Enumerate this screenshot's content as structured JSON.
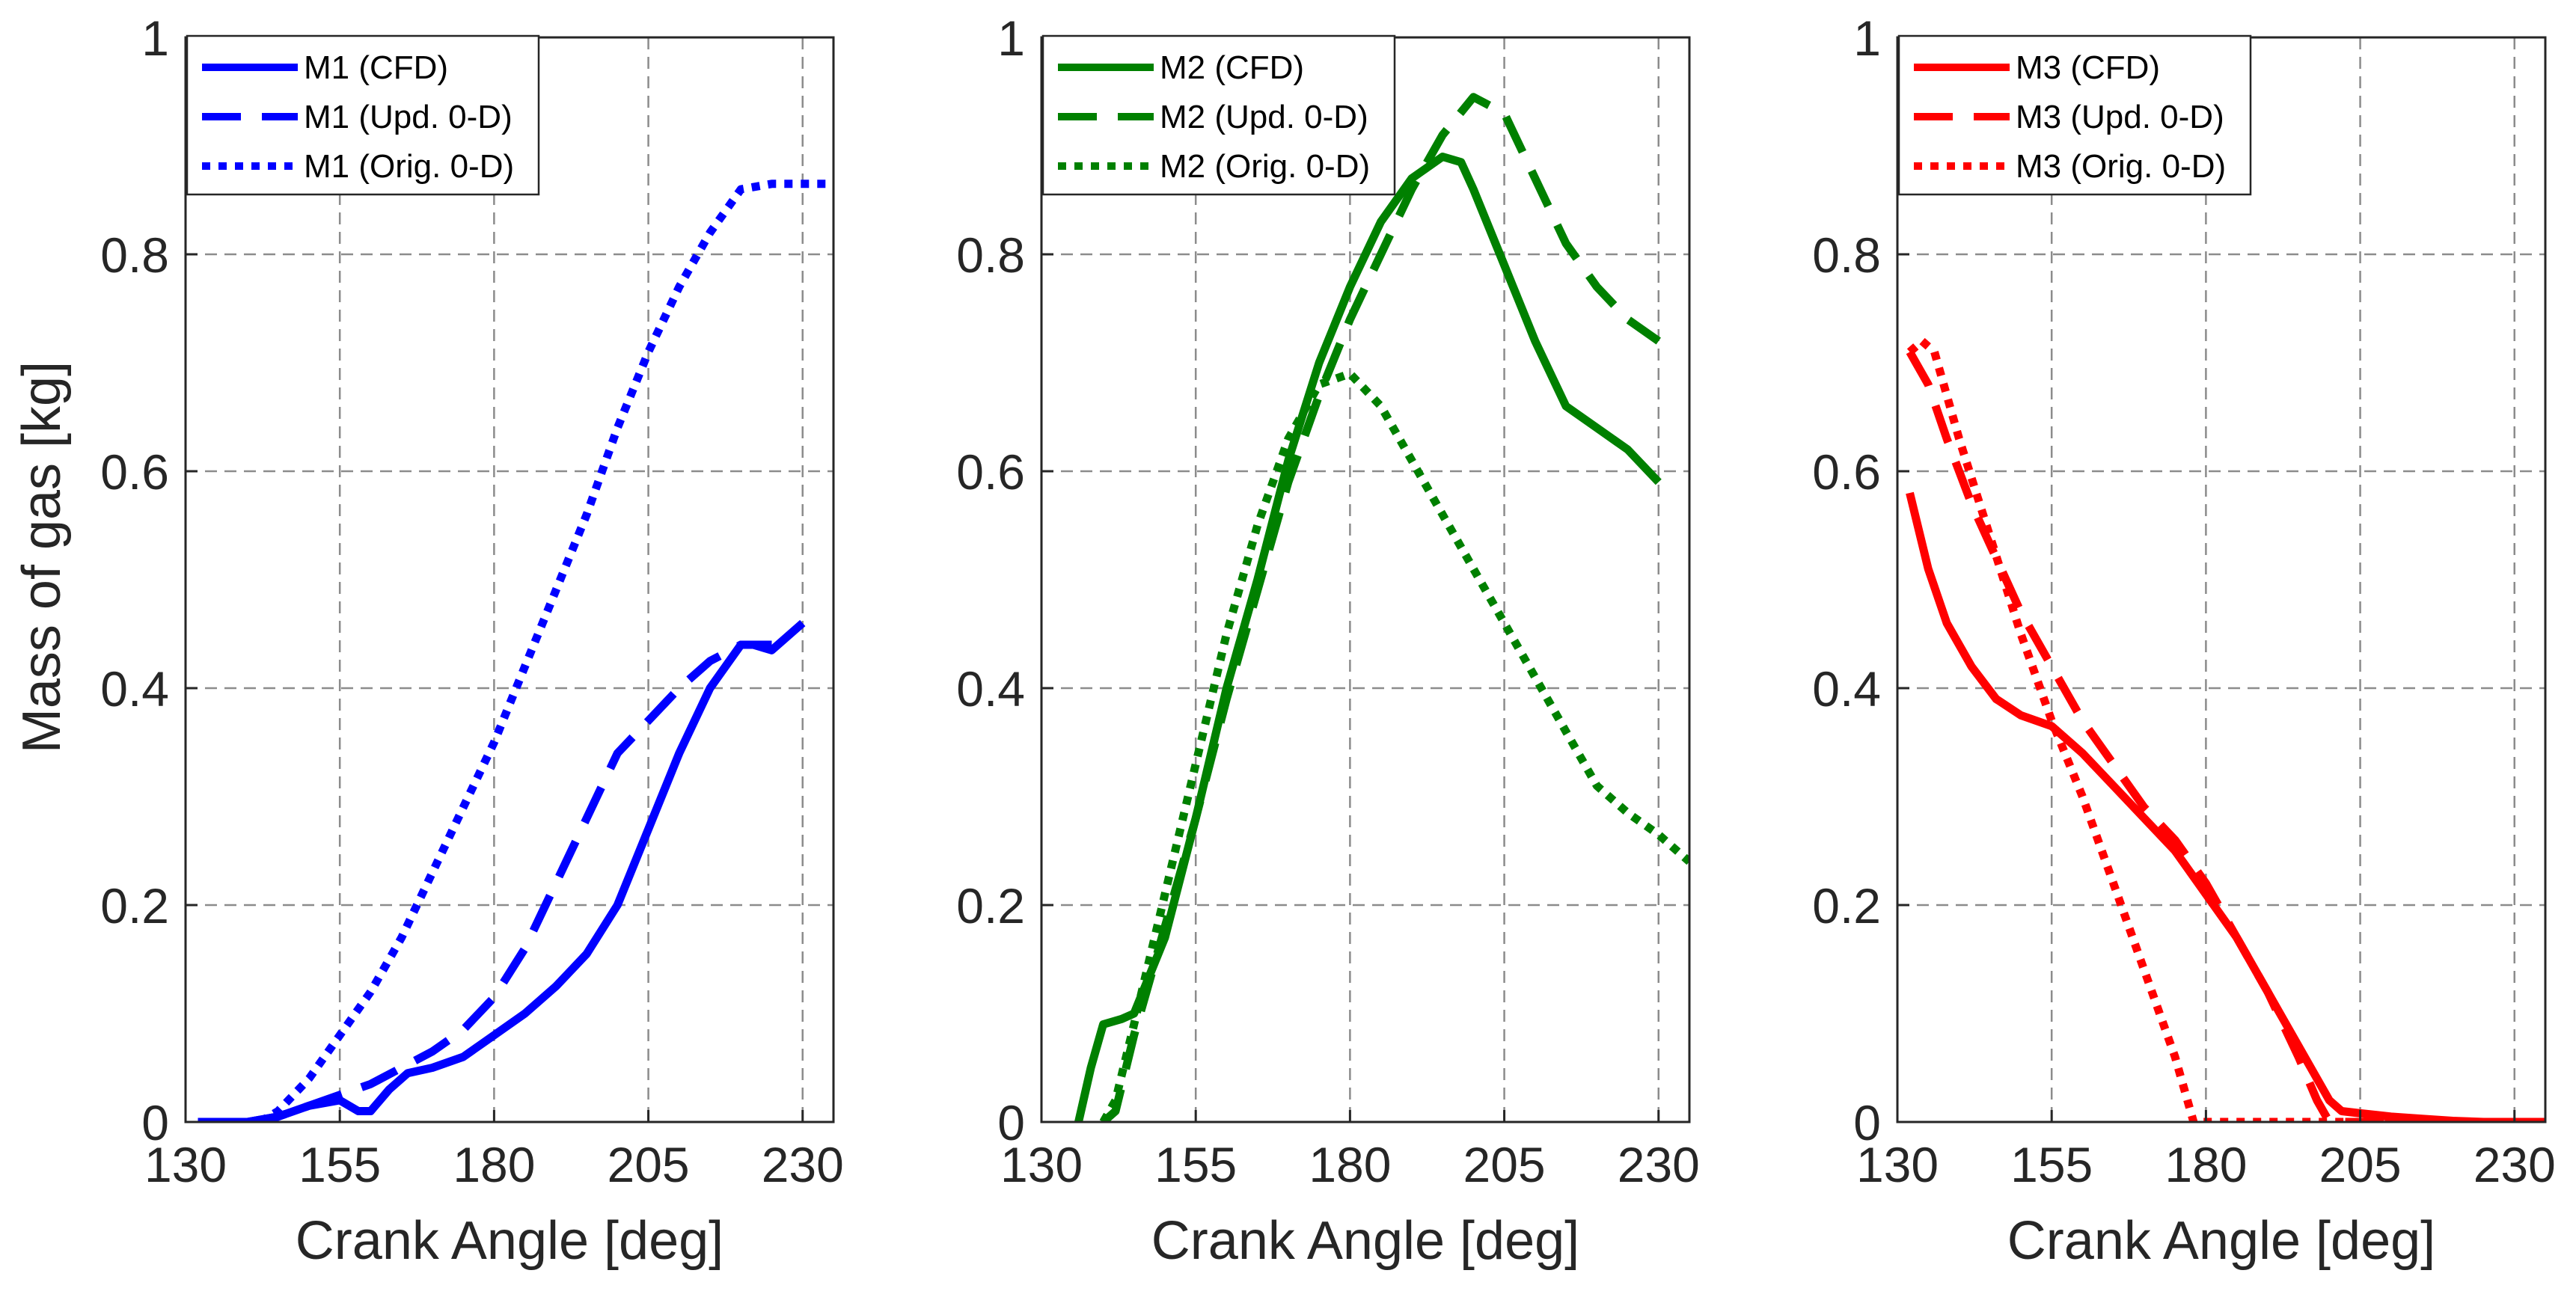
{
  "figure": {
    "ylabel": "Mass of gas [kg]"
  },
  "chart_data": [
    {
      "type": "line",
      "title": "",
      "xlabel": "Crank Angle [deg]",
      "ylabel": "Mass of gas [kg]",
      "xlim": [
        130,
        235
      ],
      "ylim": [
        0,
        1
      ],
      "xticks": [
        130,
        155,
        180,
        205,
        230
      ],
      "xtick_labels": [
        "130",
        "155",
        "180",
        "205",
        "230"
      ],
      "yticks": [
        0,
        0.2,
        0.4,
        0.6,
        0.8,
        1
      ],
      "ytick_labels": [
        "0",
        "0.2",
        "0.4",
        "0.6",
        "0.8",
        "1"
      ],
      "grid": true,
      "legend_position": "top-left",
      "series": [
        {
          "name": "M1 (CFD)",
          "style": "solid",
          "color": "#0000FF",
          "x": [
            132,
            140,
            145,
            150,
            155,
            158,
            160,
            163,
            166,
            170,
            175,
            180,
            185,
            190,
            195,
            200,
            205,
            210,
            215,
            220,
            222,
            225,
            230
          ],
          "y": [
            0,
            0,
            0.005,
            0.015,
            0.02,
            0.01,
            0.01,
            0.03,
            0.045,
            0.05,
            0.06,
            0.08,
            0.1,
            0.125,
            0.155,
            0.2,
            0.27,
            0.34,
            0.4,
            0.44,
            0.44,
            0.435,
            0.46
          ]
        },
        {
          "name": "M1 (Upd. 0-D)",
          "style": "dashed",
          "color": "#0000FF",
          "x": [
            140,
            145,
            150,
            155,
            160,
            165,
            170,
            175,
            180,
            185,
            190,
            195,
            200,
            205,
            210,
            215,
            220,
            225
          ],
          "y": [
            0,
            0.005,
            0.015,
            0.025,
            0.035,
            0.05,
            0.065,
            0.085,
            0.115,
            0.16,
            0.22,
            0.28,
            0.34,
            0.37,
            0.4,
            0.425,
            0.44,
            0.44
          ]
        },
        {
          "name": "M1 (Orig. 0-D)",
          "style": "dotted",
          "color": "#0000FF",
          "x": [
            142,
            145,
            150,
            155,
            160,
            165,
            170,
            175,
            180,
            185,
            190,
            195,
            200,
            205,
            210,
            215,
            220,
            225,
            230,
            235
          ],
          "y": [
            0,
            0.01,
            0.04,
            0.08,
            0.12,
            0.17,
            0.23,
            0.29,
            0.35,
            0.42,
            0.49,
            0.56,
            0.64,
            0.71,
            0.77,
            0.82,
            0.86,
            0.865,
            0.865,
            0.865
          ]
        }
      ]
    },
    {
      "type": "line",
      "title": "",
      "xlabel": "Crank Angle [deg]",
      "ylabel": "",
      "xlim": [
        130,
        235
      ],
      "ylim": [
        0,
        1
      ],
      "xticks": [
        130,
        155,
        180,
        205,
        230
      ],
      "xtick_labels": [
        "130",
        "155",
        "180",
        "205",
        "230"
      ],
      "yticks": [
        0,
        0.2,
        0.4,
        0.6,
        0.8,
        1
      ],
      "ytick_labels": [
        "0",
        "0.2",
        "0.4",
        "0.6",
        "0.8",
        "1"
      ],
      "grid": true,
      "legend_position": "top-left",
      "series": [
        {
          "name": "M2 (CFD)",
          "style": "solid",
          "color": "#008000",
          "x": [
            136,
            138,
            140,
            143,
            145,
            150,
            155,
            160,
            165,
            170,
            175,
            180,
            185,
            190,
            195,
            198,
            200,
            205,
            210,
            215,
            220,
            225,
            230
          ],
          "y": [
            0,
            0.05,
            0.09,
            0.095,
            0.1,
            0.17,
            0.28,
            0.4,
            0.5,
            0.61,
            0.7,
            0.77,
            0.83,
            0.87,
            0.89,
            0.885,
            0.86,
            0.79,
            0.72,
            0.66,
            0.64,
            0.62,
            0.59
          ]
        },
        {
          "name": "M2 (Upd. 0-D)",
          "style": "dashed",
          "color": "#008000",
          "x": [
            140,
            142,
            145,
            150,
            155,
            160,
            165,
            170,
            175,
            180,
            185,
            190,
            195,
            200,
            205,
            210,
            215,
            220,
            225,
            230
          ],
          "y": [
            0,
            0.01,
            0.08,
            0.18,
            0.28,
            0.39,
            0.49,
            0.59,
            0.67,
            0.74,
            0.8,
            0.86,
            0.91,
            0.945,
            0.93,
            0.87,
            0.81,
            0.77,
            0.74,
            0.72
          ]
        },
        {
          "name": "M2 (Orig. 0-D)",
          "style": "dotted",
          "color": "#008000",
          "x": [
            140,
            142,
            145,
            150,
            155,
            160,
            165,
            170,
            175,
            180,
            185,
            190,
            195,
            200,
            205,
            210,
            215,
            220,
            225,
            230,
            235
          ],
          "y": [
            0,
            0.02,
            0.09,
            0.21,
            0.33,
            0.45,
            0.55,
            0.63,
            0.68,
            0.69,
            0.66,
            0.61,
            0.56,
            0.51,
            0.46,
            0.41,
            0.36,
            0.31,
            0.285,
            0.265,
            0.24
          ]
        }
      ]
    },
    {
      "type": "line",
      "title": "",
      "xlabel": "Crank Angle [deg]",
      "ylabel": "",
      "xlim": [
        130,
        235
      ],
      "ylim": [
        0,
        1
      ],
      "xticks": [
        130,
        155,
        180,
        205,
        230
      ],
      "xtick_labels": [
        "130",
        "155",
        "180",
        "205",
        "230"
      ],
      "yticks": [
        0,
        0.2,
        0.4,
        0.6,
        0.8,
        1
      ],
      "ytick_labels": [
        "0",
        "0.2",
        "0.4",
        "0.6",
        "0.8",
        "1"
      ],
      "grid": true,
      "legend_position": "top-left",
      "series": [
        {
          "name": "M3 (CFD)",
          "style": "solid",
          "color": "#FF0000",
          "x": [
            132,
            135,
            138,
            142,
            146,
            150,
            155,
            160,
            165,
            170,
            175,
            180,
            185,
            190,
            195,
            200,
            202,
            205,
            210,
            215,
            220,
            225,
            230,
            235
          ],
          "y": [
            0.58,
            0.51,
            0.46,
            0.42,
            0.39,
            0.375,
            0.365,
            0.34,
            0.31,
            0.28,
            0.25,
            0.21,
            0.17,
            0.12,
            0.07,
            0.02,
            0.01,
            0.008,
            0.005,
            0.003,
            0.001,
            0,
            0,
            0
          ]
        },
        {
          "name": "M3 (Upd. 0-D)",
          "style": "dashed",
          "color": "#FF0000",
          "x": [
            132,
            135,
            138,
            142,
            146,
            150,
            155,
            160,
            165,
            170,
            175,
            180,
            185,
            190,
            195,
            198,
            200,
            205,
            210,
            215,
            220,
            225,
            230,
            235
          ],
          "y": [
            0.71,
            0.68,
            0.63,
            0.57,
            0.52,
            0.47,
            0.42,
            0.37,
            0.33,
            0.29,
            0.26,
            0.22,
            0.17,
            0.12,
            0.06,
            0.02,
            0,
            0,
            0,
            0,
            0,
            0,
            0,
            0
          ]
        },
        {
          "name": "M3 (Orig. 0-D)",
          "style": "dotted",
          "color": "#FF0000",
          "x": [
            132,
            134,
            136,
            140,
            145,
            150,
            155,
            160,
            165,
            170,
            175,
            178,
            180,
            185,
            190,
            195,
            200,
            205,
            210,
            215,
            220,
            225,
            230,
            235
          ],
          "y": [
            0.71,
            0.72,
            0.71,
            0.63,
            0.54,
            0.45,
            0.37,
            0.3,
            0.22,
            0.14,
            0.06,
            0,
            0,
            0,
            0,
            0,
            0,
            0,
            0,
            0,
            0,
            0,
            0,
            0
          ]
        }
      ]
    }
  ]
}
